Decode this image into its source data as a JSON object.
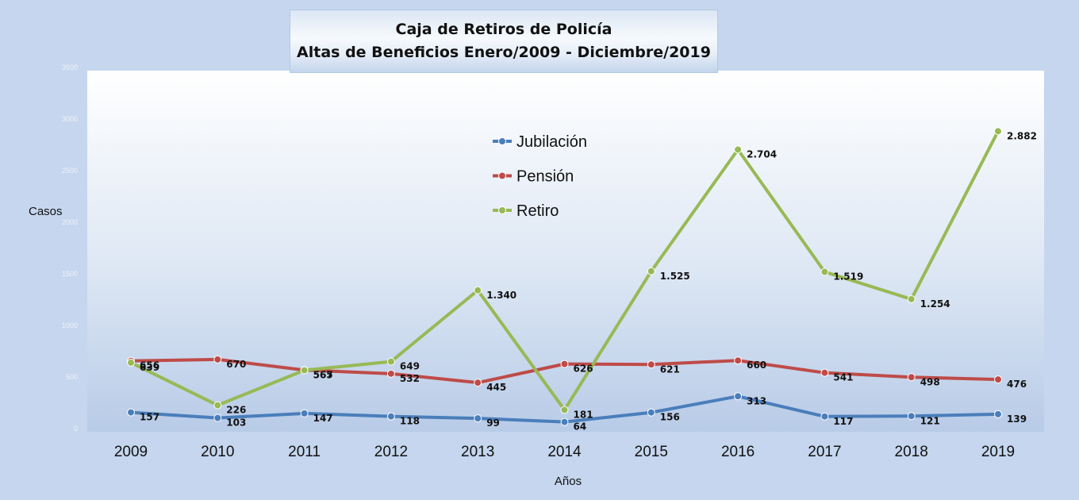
{
  "chart_data": {
    "type": "line",
    "title": "Caja de Retiros de Policía",
    "subtitle": "Altas de Beneficios Enero/2009 - Diciembre/2019",
    "xlabel": "Años",
    "ylabel": "Casos",
    "ylim": [
      0,
      3500
    ],
    "yticks": [
      0,
      500,
      1000,
      1500,
      2000,
      2500,
      3000,
      3500
    ],
    "categories": [
      "2009",
      "2010",
      "2011",
      "2012",
      "2013",
      "2014",
      "2015",
      "2016",
      "2017",
      "2018",
      "2019"
    ],
    "legend_position": "top-center",
    "grid": false,
    "series": [
      {
        "name": "Jubilación",
        "color": "#4a7ebb",
        "values": [
          157,
          103,
          147,
          118,
          99,
          64,
          156,
          313,
          117,
          121,
          139
        ],
        "labels": [
          "157",
          "103",
          "147",
          "118",
          "99",
          "64",
          "156",
          "313",
          "117",
          "121",
          "139"
        ]
      },
      {
        "name": "Pensión",
        "color": "#be4b48",
        "values": [
          656,
          670,
          567,
          532,
          445,
          626,
          621,
          660,
          541,
          498,
          476
        ],
        "labels": [
          "656",
          "670",
          "567",
          "532",
          "445",
          "626",
          "621",
          "660",
          "541",
          "498",
          "476"
        ]
      },
      {
        "name": "Retiro",
        "color": "#98b954",
        "values": [
          639,
          226,
          565,
          649,
          1340,
          181,
          1525,
          2704,
          1519,
          1254,
          2882
        ],
        "labels": [
          "639",
          "226",
          "565",
          "649",
          "1.340",
          "181",
          "1.525",
          "2.704",
          "1.519",
          "1.254",
          "2.882"
        ]
      }
    ]
  }
}
